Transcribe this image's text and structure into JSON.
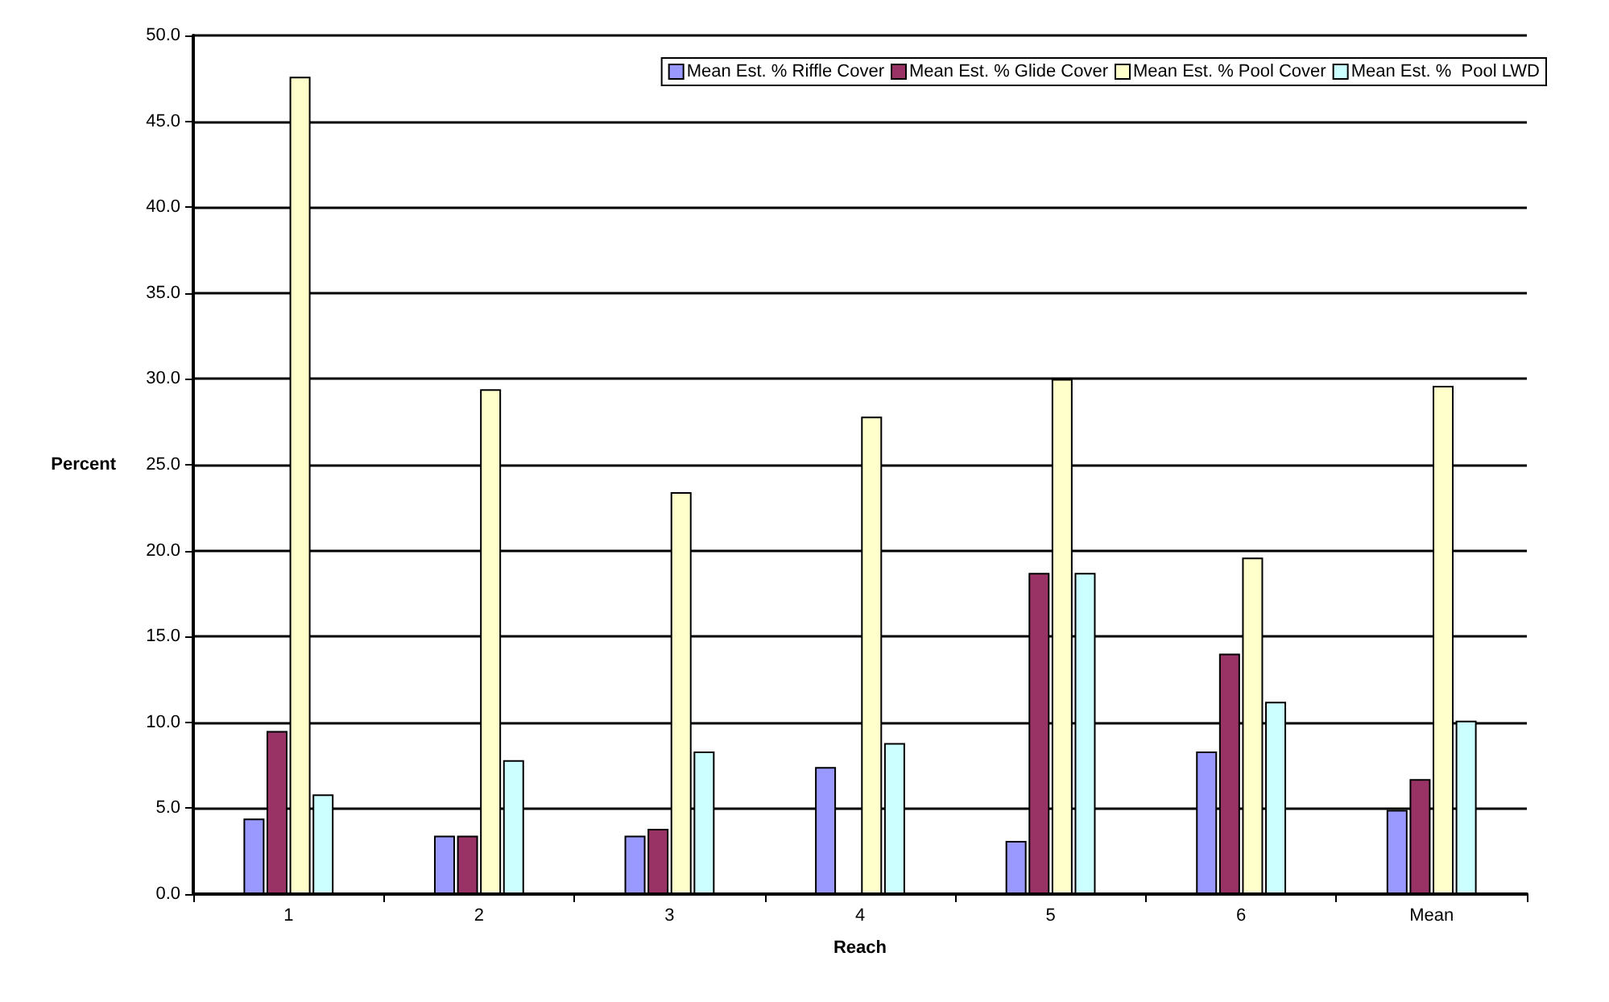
{
  "chart_data": {
    "type": "bar",
    "xlabel": "Reach",
    "ylabel": "Percent",
    "categories": [
      "1",
      "2",
      "3",
      "4",
      "5",
      "6",
      "Mean"
    ],
    "series": [
      {
        "name": "Mean Est. % Riffle Cover",
        "color": "#9999ff",
        "values": [
          4.4,
          3.4,
          3.4,
          7.4,
          3.1,
          8.3,
          4.9
        ]
      },
      {
        "name": "Mean Est. % Glide Cover",
        "color": "#993366",
        "values": [
          9.5,
          3.4,
          3.8,
          null,
          18.7,
          14.0,
          6.7
        ]
      },
      {
        "name": "Mean Est. % Pool Cover",
        "color": "#ffffcc",
        "values": [
          47.6,
          29.4,
          23.4,
          27.8,
          30.0,
          19.6,
          29.6
        ]
      },
      {
        "name": "Mean Est. %  Pool LWD",
        "color": "#ccffff",
        "values": [
          5.8,
          7.8,
          8.3,
          8.8,
          18.7,
          11.2,
          10.1
        ]
      }
    ],
    "ylim": [
      0,
      50
    ],
    "yticks": [
      {
        "value": 0,
        "label": "0.0"
      },
      {
        "value": 5,
        "label": "5.0"
      },
      {
        "value": 10,
        "label": "10.0"
      },
      {
        "value": 15,
        "label": "15.0"
      },
      {
        "value": 20,
        "label": "20.0"
      },
      {
        "value": 25,
        "label": "25.0"
      },
      {
        "value": 30,
        "label": "30.0"
      },
      {
        "value": 35,
        "label": "35.0"
      },
      {
        "value": 40,
        "label": "40.0"
      },
      {
        "value": 45,
        "label": "45.0"
      },
      {
        "value": 50,
        "label": "50.0"
      }
    ],
    "grid": "y",
    "legend": "top right"
  }
}
